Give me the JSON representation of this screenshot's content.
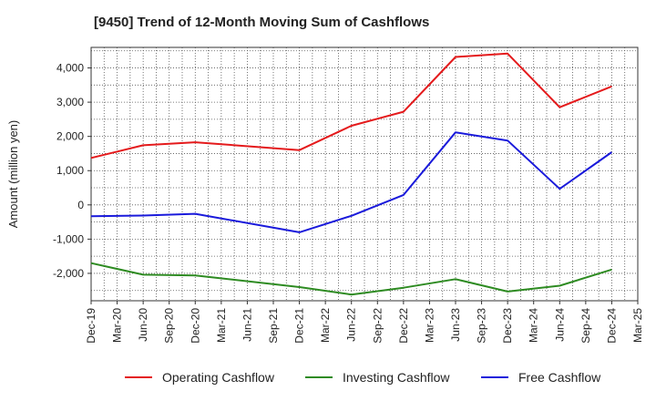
{
  "chart_data": {
    "type": "line",
    "title": "[9450]  Trend of 12-Month Moving Sum of Cashflows",
    "ylabel": "Amount (million yen)",
    "xlabel": "",
    "ylim": [
      -2800,
      4600
    ],
    "yticks": [
      -2000,
      -1000,
      0,
      1000,
      2000,
      3000,
      4000
    ],
    "ytick_labels": [
      "-2,000",
      "-1,000",
      "0",
      "1,000",
      "2,000",
      "3,000",
      "4,000"
    ],
    "xtick_labels": [
      "Dec-19",
      "Mar-20",
      "Jun-20",
      "Sep-20",
      "Dec-20",
      "Mar-21",
      "Jun-21",
      "Sep-21",
      "Dec-21",
      "Mar-22",
      "Jun-22",
      "Sep-22",
      "Dec-22",
      "Mar-23",
      "Jun-23",
      "Sep-23",
      "Dec-23",
      "Mar-24",
      "Jun-24",
      "Sep-24",
      "Dec-24",
      "Mar-25"
    ],
    "grid": true,
    "legend_position": "bottom",
    "series": [
      {
        "name": "Operating Cashflow",
        "color": "#e41a1c",
        "x": [
          "Dec-19",
          "Jun-20",
          "Dec-20",
          "Dec-21",
          "Jun-22",
          "Dec-22",
          "Jun-23",
          "Dec-23",
          "Jun-24",
          "Dec-24"
        ],
        "values": [
          1370,
          1740,
          1830,
          1600,
          2310,
          2720,
          4320,
          4420,
          2850,
          3460
        ]
      },
      {
        "name": "Investing Cashflow",
        "color": "#2e8b22",
        "x": [
          "Dec-19",
          "Jun-20",
          "Dec-20",
          "Dec-21",
          "Jun-22",
          "Dec-22",
          "Jun-23",
          "Dec-23",
          "Jun-24",
          "Dec-24"
        ],
        "values": [
          -1700,
          -2040,
          -2060,
          -2400,
          -2620,
          -2420,
          -2170,
          -2530,
          -2360,
          -1890
        ]
      },
      {
        "name": "Free Cashflow",
        "color": "#1a1adb",
        "x": [
          "Dec-19",
          "Jun-20",
          "Dec-20",
          "Dec-21",
          "Jun-22",
          "Dec-22",
          "Jun-23",
          "Dec-23",
          "Jun-24",
          "Dec-24"
        ],
        "values": [
          -330,
          -310,
          -260,
          -800,
          -320,
          290,
          2120,
          1880,
          470,
          1540
        ]
      }
    ]
  }
}
